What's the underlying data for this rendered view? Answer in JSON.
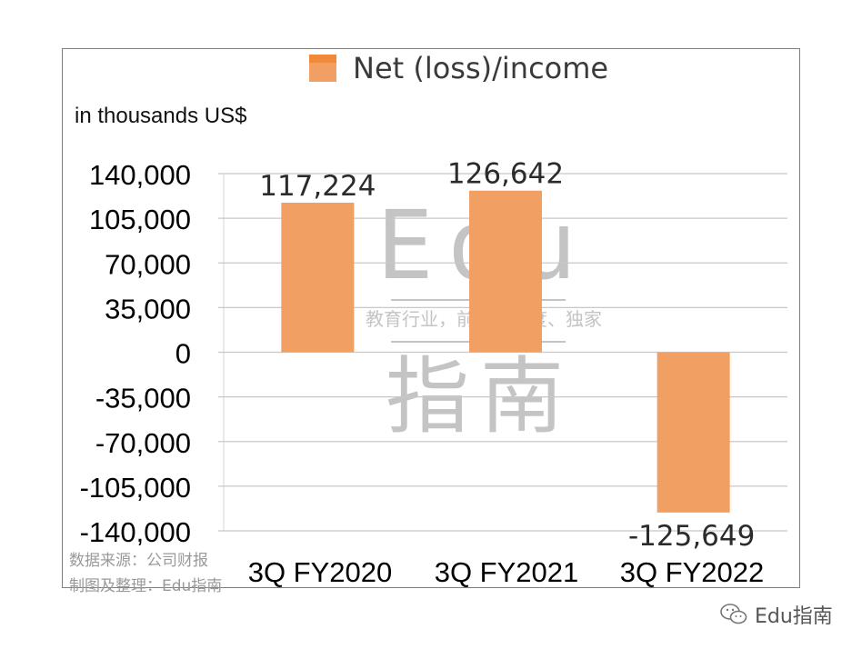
{
  "legend": {
    "label": "Net (loss)/income"
  },
  "unit_label": "in thousands US$",
  "source": {
    "line1": "数据来源：公司财报",
    "line2": "制图及整理：Edu指南"
  },
  "watermark": {
    "big": "Edu",
    "tagline": "教育行业，前沿、深度、独家",
    "cn": "指南"
  },
  "wechat_label": "Edu指南",
  "colors": {
    "bar": "#f29f64",
    "legend": "#f0893a",
    "grid": "#c8c8c8",
    "watermark": "#c4c4c4"
  },
  "chart_data": {
    "type": "bar",
    "title": "",
    "xlabel": "",
    "ylabel": "in thousands US$",
    "categories": [
      "3Q FY2020",
      "3Q FY2021",
      "3Q FY2022"
    ],
    "series": [
      {
        "name": "Net (loss)/income",
        "values": [
          117224,
          126642,
          -125649
        ]
      }
    ],
    "value_labels": [
      "117,224",
      "126,642",
      "-125,649"
    ],
    "ylim": [
      -140000,
      140000
    ],
    "yticks": [
      140000,
      105000,
      70000,
      35000,
      0,
      -35000,
      -70000,
      -105000,
      -140000
    ],
    "ytick_labels": [
      "140,000",
      "105,000",
      "70,000",
      "35,000",
      "0",
      "-35,000",
      "-70,000",
      "-105,000",
      "-140,000"
    ],
    "grid": true,
    "legend_position": "top"
  }
}
